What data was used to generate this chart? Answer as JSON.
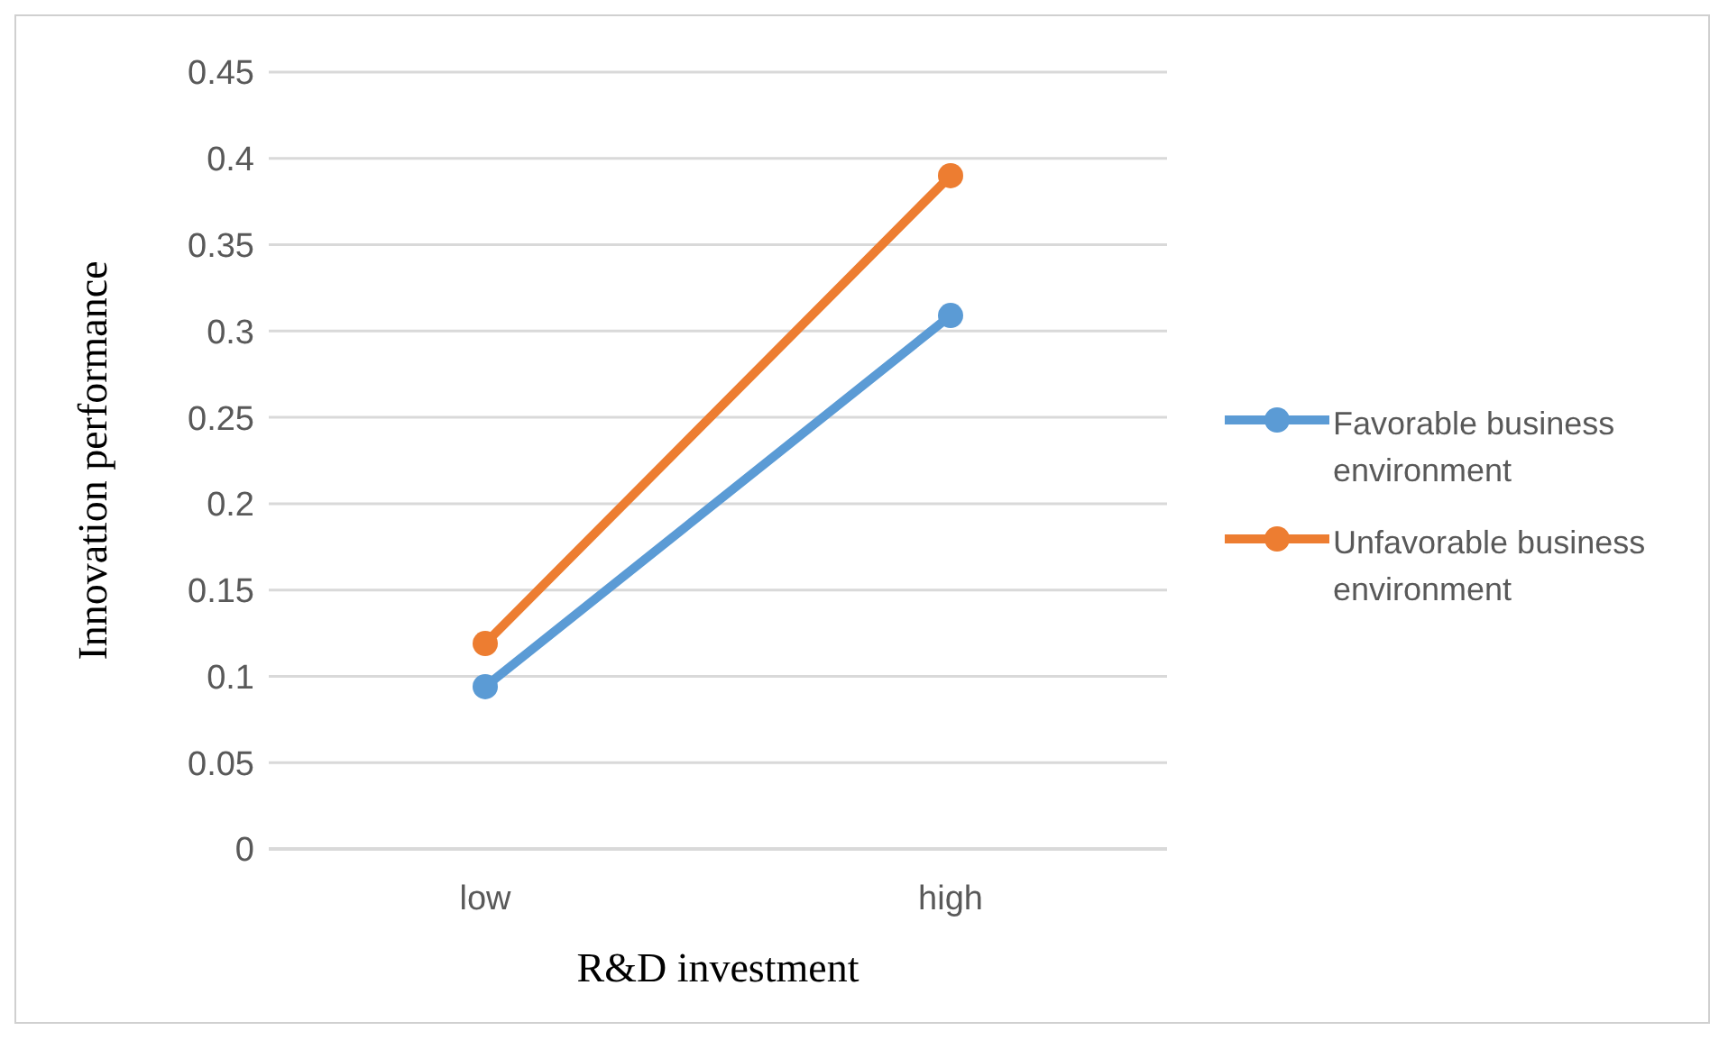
{
  "chart_data": {
    "type": "line",
    "xlabel": "R&D investment",
    "ylabel": "Innovation performance",
    "categories": [
      "low",
      "high"
    ],
    "series": [
      {
        "name": "Favorable business environment",
        "color": "#5b9bd5",
        "values": [
          0.094,
          0.309
        ]
      },
      {
        "name": "Unfavorable business environment",
        "color": "#ed7d31",
        "values": [
          0.119,
          0.39
        ]
      }
    ],
    "ylim": [
      0,
      0.45
    ],
    "yticks": [
      0,
      0.05,
      0.1,
      0.15,
      0.2,
      0.25,
      0.3,
      0.35,
      0.4,
      0.45
    ],
    "grid": "y",
    "legend": "right",
    "marker": "circle",
    "line_style": "solid"
  }
}
